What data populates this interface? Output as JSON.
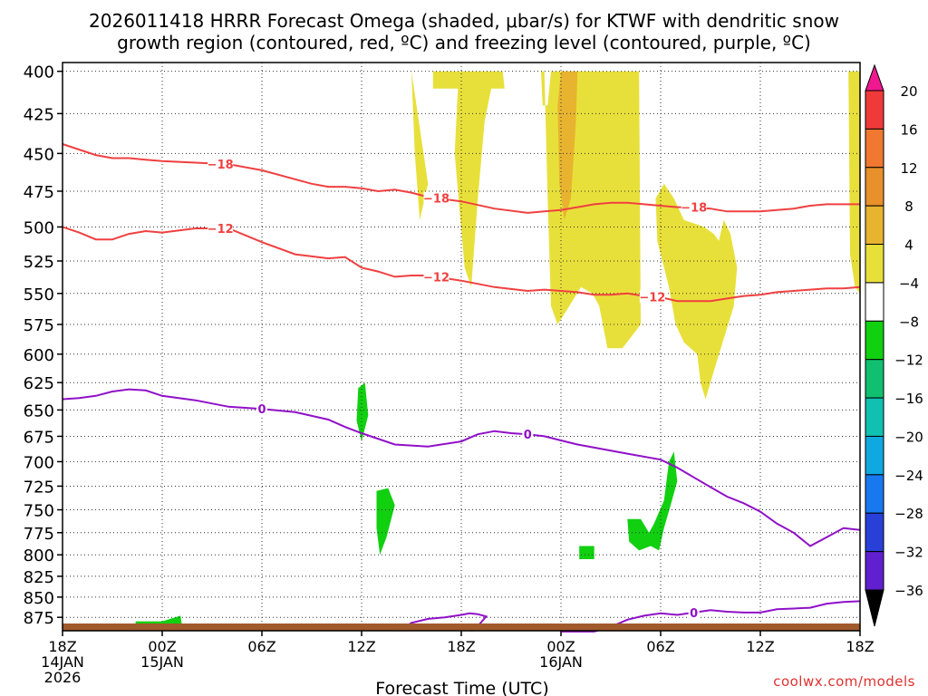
{
  "title_line1": "2026011418 HRRR Forecast Omega (shaded, μbar/s) for KTWF with dendritic snow",
  "title_line2": "growth region (contoured, red, ºC) and freezing level (contoured, purple, ºC)",
  "xlabel": "Forecast Time (UTC)",
  "credit": "coolwx.com/models",
  "chart_data": {
    "type": "time-height cross section",
    "y_axis": {
      "label": "",
      "direction": "pressure decreasing upward",
      "ticks": [
        400,
        425,
        450,
        475,
        500,
        525,
        550,
        575,
        600,
        625,
        650,
        675,
        700,
        725,
        750,
        775,
        800,
        825,
        850,
        875
      ],
      "range": [
        400,
        890
      ]
    },
    "x_axis": {
      "range_hours": [
        0,
        48
      ],
      "ticks": [
        {
          "hour": 0,
          "lines": [
            "18Z",
            "14JAN",
            "2026"
          ]
        },
        {
          "hour": 6,
          "lines": [
            "00Z",
            "15JAN"
          ]
        },
        {
          "hour": 12,
          "lines": [
            "06Z"
          ]
        },
        {
          "hour": 18,
          "lines": [
            "12Z"
          ]
        },
        {
          "hour": 24,
          "lines": [
            "18Z"
          ]
        },
        {
          "hour": 30,
          "lines": [
            "00Z",
            "16JAN"
          ]
        },
        {
          "hour": 36,
          "lines": [
            "06Z"
          ]
        },
        {
          "hour": 42,
          "lines": [
            "12Z"
          ]
        },
        {
          "hour": 48,
          "lines": [
            "18Z"
          ]
        }
      ]
    },
    "grid": true,
    "colorbar": {
      "labels": [
        20,
        16,
        12,
        8,
        4,
        -4,
        -8,
        -12,
        -16,
        -20,
        -24,
        -28,
        -32,
        -36
      ],
      "colors": [
        "#e8e03a",
        "#e8b430",
        "#e8902a",
        "#f07830",
        "#f03a3a",
        "#e8e03a",
        "#ffffff",
        "#10d010",
        "#10c070",
        "#10c0b0",
        "#10a8e0",
        "#1878f0",
        "#2840d8",
        "#6020d0",
        "#9010c8",
        "#a0a0a0"
      ]
    },
    "omega_shading": [
      {
        "class": "4 to 8 (upward motion)",
        "color": "#e8e03a",
        "polygon": [
          [
            21.0,
            400
          ],
          [
            21.2,
            450
          ],
          [
            21.5,
            495
          ],
          [
            22.0,
            470
          ],
          [
            22.3,
            410
          ],
          [
            23.8,
            410
          ],
          [
            23.6,
            450
          ],
          [
            24.2,
            530
          ],
          [
            24.6,
            545
          ],
          [
            25.0,
            480
          ],
          [
            25.4,
            430
          ],
          [
            25.8,
            410
          ],
          [
            26.6,
            410
          ],
          [
            26.5,
            400
          ],
          [
            28.8,
            400
          ],
          [
            28.9,
            420
          ],
          [
            29.2,
            420
          ],
          [
            29.4,
            400
          ],
          [
            34.7,
            400
          ],
          [
            34.8,
            575
          ],
          [
            33.7,
            595
          ],
          [
            32.8,
            595
          ],
          [
            32.3,
            560
          ],
          [
            31.9,
            550
          ],
          [
            31.2,
            545
          ],
          [
            30.5,
            560
          ],
          [
            29.8,
            575
          ],
          [
            29.4,
            560
          ],
          [
            29.2,
            480
          ],
          [
            29.0,
            400
          ],
          [
            22.3,
            400
          ],
          [
            22.3,
            410
          ],
          [
            22.0,
            470
          ]
        ]
      },
      {
        "class": "4 to 8 (upward motion) later",
        "color": "#e8e03a",
        "polygon": [
          [
            35.7,
            480
          ],
          [
            36.2,
            470
          ],
          [
            36.8,
            480
          ],
          [
            37.4,
            495
          ],
          [
            38.6,
            500
          ],
          [
            39.2,
            505
          ],
          [
            39.5,
            510
          ],
          [
            39.8,
            495
          ],
          [
            40.2,
            505
          ],
          [
            40.6,
            530
          ],
          [
            40.4,
            560
          ],
          [
            39.3,
            610
          ],
          [
            38.7,
            640
          ],
          [
            38.4,
            625
          ],
          [
            38.2,
            600
          ],
          [
            37.4,
            590
          ],
          [
            36.9,
            575
          ],
          [
            36.5,
            545
          ],
          [
            35.8,
            510
          ]
        ]
      },
      {
        "class": "4 to 8 (upward motion) end",
        "color": "#e8e03a",
        "polygon": [
          [
            47.3,
            400
          ],
          [
            48.0,
            400
          ],
          [
            48.0,
            550
          ],
          [
            47.7,
            545
          ],
          [
            47.4,
            520
          ]
        ]
      },
      {
        "class": "8 to 12",
        "color": "#e8b430",
        "polygon": [
          [
            30.0,
            400
          ],
          [
            31.0,
            400
          ],
          [
            30.9,
            430
          ],
          [
            30.6,
            480
          ],
          [
            30.2,
            495
          ],
          [
            29.9,
            470
          ],
          [
            29.8,
            420
          ]
        ]
      },
      {
        "class": "-4 to -8 (downward motion)",
        "color": "#10d010",
        "polygon": [
          [
            17.8,
            630
          ],
          [
            18.2,
            625
          ],
          [
            18.4,
            655
          ],
          [
            18.0,
            680
          ],
          [
            17.7,
            660
          ]
        ]
      },
      {
        "class": "-4 to -8 (downward motion)",
        "color": "#10d010",
        "polygon": [
          [
            18.9,
            730
          ],
          [
            19.6,
            727
          ],
          [
            20.0,
            745
          ],
          [
            19.5,
            780
          ],
          [
            19.1,
            800
          ],
          [
            18.9,
            770
          ]
        ]
      },
      {
        "class": "-4 to -8 (downward motion)",
        "color": "#10d010",
        "polygon": [
          [
            34.0,
            760
          ],
          [
            34.8,
            760
          ],
          [
            35.3,
            775
          ],
          [
            35.6,
            765
          ],
          [
            36.2,
            740
          ],
          [
            36.5,
            700
          ],
          [
            36.8,
            690
          ],
          [
            37.0,
            720
          ],
          [
            36.6,
            745
          ],
          [
            36.2,
            770
          ],
          [
            35.9,
            795
          ],
          [
            35.4,
            790
          ],
          [
            34.7,
            795
          ],
          [
            34.1,
            785
          ]
        ]
      },
      {
        "class": "-4 to -8 (downward motion)",
        "color": "#10d010",
        "polygon": [
          [
            31.1,
            790
          ],
          [
            32.0,
            790
          ],
          [
            32.0,
            805
          ],
          [
            31.1,
            805
          ]
        ]
      },
      {
        "class": "-4 to -8 (downward motion)",
        "color": "#10d010",
        "polygon": [
          [
            4.4,
            880
          ],
          [
            6.0,
            880
          ],
          [
            7.1,
            873
          ],
          [
            7.2,
            887
          ],
          [
            4.4,
            887
          ]
        ]
      }
    ],
    "series": [
      {
        "name": "-18",
        "color": "#f04040",
        "label_positions_hours": [
          9.5,
          22.5,
          38.0
        ],
        "x": [
          0,
          2,
          3,
          4,
          5,
          6,
          8,
          10,
          12,
          15,
          16,
          17,
          18,
          19,
          20,
          21,
          22,
          24,
          26,
          28,
          29,
          30,
          31,
          32,
          33,
          34,
          35,
          36,
          37,
          38,
          39,
          40,
          41,
          42,
          43,
          44,
          45,
          46,
          47,
          48
        ],
        "y": [
          444,
          451,
          453,
          453,
          454,
          455,
          456,
          457,
          461,
          470,
          472,
          472,
          473,
          475,
          474,
          476,
          479,
          482,
          487,
          490,
          489,
          488,
          486,
          484,
          483,
          483,
          484,
          485,
          486,
          486,
          487,
          489,
          489,
          489,
          488,
          487,
          485,
          484,
          484,
          484
        ]
      },
      {
        "name": "-12",
        "color": "#f04040",
        "label_positions_hours": [
          9.5,
          22.5,
          35.5
        ],
        "x": [
          0,
          1,
          2,
          3,
          4,
          5,
          6,
          8,
          10,
          12,
          14,
          16,
          17,
          18,
          19,
          20,
          21,
          22,
          24,
          26,
          28,
          29,
          30,
          31,
          32,
          33,
          34,
          35,
          36,
          37,
          38,
          39,
          40,
          41,
          42,
          43,
          44,
          45,
          46,
          47,
          48
        ],
        "y": [
          500,
          504,
          509,
          509,
          505,
          503,
          504,
          501,
          501,
          511,
          520,
          523,
          522,
          530,
          533,
          537,
          536,
          536,
          540,
          545,
          548,
          547,
          548,
          549,
          551,
          551,
          550,
          552,
          553,
          556,
          556,
          556,
          554,
          552,
          551,
          549,
          548,
          547,
          546,
          546,
          545
        ]
      },
      {
        "name": "0",
        "color": "#9010c8",
        "label_positions_hours": [
          12.0,
          28.0
        ],
        "x": [
          0,
          1,
          2,
          3,
          4,
          5,
          6,
          8,
          10,
          12,
          14,
          16,
          17,
          18,
          20,
          22,
          24,
          25,
          26,
          27,
          28,
          29,
          30,
          31,
          32,
          34,
          36,
          37,
          38,
          39,
          40,
          41,
          42,
          43,
          44,
          45,
          46,
          47,
          48
        ],
        "y": [
          640,
          639,
          637,
          633,
          631,
          632,
          637,
          641,
          647,
          649,
          652,
          659,
          666,
          672,
          683,
          685,
          680,
          673,
          670,
          672,
          673,
          675,
          679,
          683,
          686,
          692,
          698,
          706,
          716,
          726,
          736,
          743,
          752,
          765,
          775,
          790,
          780,
          770,
          772
        ]
      },
      {
        "name": "0",
        "color": "#9010c8",
        "label_positions_hours": [
          38.0
        ],
        "x": [
          30,
          31,
          32,
          33,
          34,
          35,
          36,
          37,
          38,
          39,
          40,
          41,
          42,
          43,
          44,
          45,
          46,
          47,
          48
        ],
        "y": [
          893,
          893,
          893,
          887,
          878,
          873,
          870,
          872,
          869,
          866,
          868,
          869,
          869,
          865,
          864,
          863,
          858,
          856,
          855
        ]
      },
      {
        "name": "0",
        "color": "#9010c8",
        "label_positions_hours": [],
        "x": [
          20.3,
          21,
          22,
          23,
          24,
          24.5,
          25,
          25.5,
          25.0,
          24.6
        ],
        "y": [
          892,
          882,
          877,
          875,
          872,
          870,
          871,
          874,
          886,
          892
        ]
      }
    ]
  }
}
